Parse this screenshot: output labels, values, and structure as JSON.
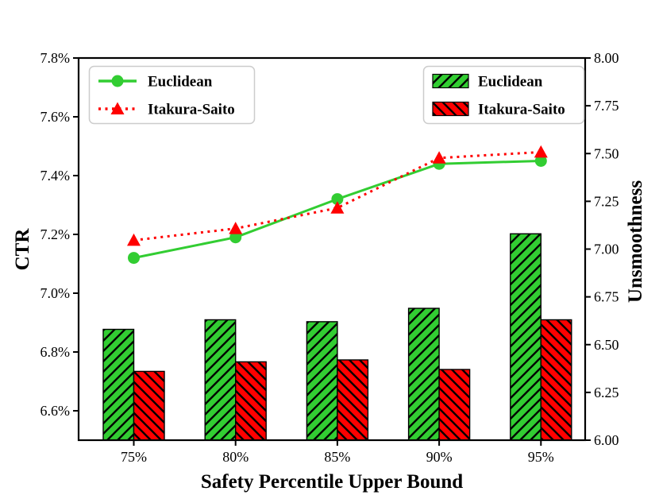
{
  "chart_data": {
    "type": "bar",
    "subtype": "dual-axis bar + line combo",
    "categories": [
      "75%",
      "80%",
      "85%",
      "90%",
      "95%"
    ],
    "xlabel": "Safety Percentile Upper Bound",
    "grid": false,
    "left_axis": {
      "label": "CTR",
      "ylim": [
        6.5,
        7.8
      ],
      "ticks": [
        {
          "v": 7.8,
          "t": "7.8%"
        },
        {
          "v": 7.6,
          "t": "7.6%"
        },
        {
          "v": 7.4,
          "t": "7.4%"
        },
        {
          "v": 7.2,
          "t": "7.2%"
        },
        {
          "v": 7.0,
          "t": "7.0%"
        },
        {
          "v": 6.8,
          "t": "6.8%"
        },
        {
          "v": 6.6,
          "t": "6.6%"
        }
      ]
    },
    "right_axis": {
      "label": "Unsmoothness",
      "ylim": [
        6.0,
        8.0
      ],
      "ticks": [
        {
          "v": 8.0,
          "t": "8.00"
        },
        {
          "v": 7.75,
          "t": "7.75"
        },
        {
          "v": 7.5,
          "t": "7.50"
        },
        {
          "v": 7.25,
          "t": "7.25"
        },
        {
          "v": 7.0,
          "t": "7.00"
        },
        {
          "v": 6.75,
          "t": "6.75"
        },
        {
          "v": 6.5,
          "t": "6.50"
        },
        {
          "v": 6.25,
          "t": "6.25"
        },
        {
          "v": 6.0,
          "t": "6.00"
        }
      ]
    },
    "line_series": [
      {
        "name": "Euclidean",
        "axis": "left",
        "style": "solid",
        "marker": "circle",
        "color": "#32CD32",
        "values": [
          7.12,
          7.19,
          7.32,
          7.44,
          7.45
        ]
      },
      {
        "name": "Itakura-Saito",
        "axis": "left",
        "style": "dotted",
        "marker": "triangle",
        "color": "#FF0000",
        "values": [
          7.18,
          7.22,
          7.29,
          7.46,
          7.48
        ]
      }
    ],
    "bar_series": [
      {
        "name": "Euclidean",
        "axis": "right",
        "hatch": "/",
        "color": "#32CD32",
        "values": [
          6.58,
          6.63,
          6.62,
          6.69,
          7.08
        ]
      },
      {
        "name": "Itakura-Saito",
        "axis": "right",
        "hatch": "\\",
        "color": "#FF0000",
        "values": [
          6.36,
          6.41,
          6.42,
          6.37,
          6.63
        ]
      }
    ],
    "legend_lines": {
      "position": "upper left",
      "entries": [
        "Euclidean",
        "Itakura-Saito"
      ]
    },
    "legend_bars": {
      "position": "upper right",
      "entries": [
        "Euclidean",
        "Itakura-Saito"
      ]
    }
  },
  "colors": {
    "green": "#32CD32",
    "red": "#FF0000",
    "hatch": "#000000",
    "axis": "#000000",
    "legend_border": "#cccccc",
    "background": "#ffffff"
  }
}
